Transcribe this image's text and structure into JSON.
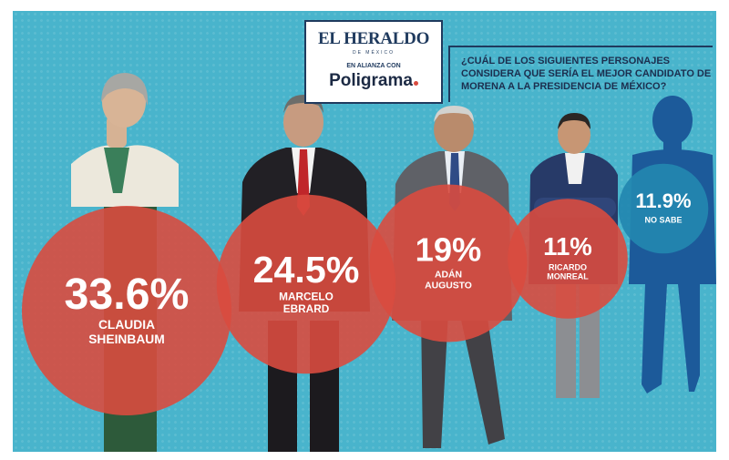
{
  "header": {
    "brand": "EL HERALDO",
    "brand_sub": "DE MÉXICO",
    "alliance": "EN ALIANZA CON",
    "partner": "Poligrama"
  },
  "question": "¿CUÁL DE LOS SIGUIENTES PERSONAJES CONSIDERA QUE SERÍA EL MEJOR CANDIDATO DE MORENA A LA PRESIDENCIA DE MÉXICO?",
  "colors": {
    "background": "#49b4cc",
    "candidate_circle": "#d94b3f",
    "unknown_circle": "#2387b0",
    "silhouette": "#1c5a9a"
  },
  "chart_data": {
    "type": "bubble",
    "categories": [
      "CLAUDIA SHEINBAUM",
      "MARCELO EBRARD",
      "ADÁN AUGUSTO",
      "RICARDO MONREAL",
      "NO SABE"
    ],
    "values": [
      33.6,
      24.5,
      19,
      11,
      11.9
    ],
    "labels": [
      "33.6%",
      "24.5%",
      "19%",
      "11%",
      "11.9%"
    ],
    "name_lines": [
      [
        "CLAUDIA",
        "SHEINBAUM"
      ],
      [
        "MARCELO",
        "EBRARD"
      ],
      [
        "ADÁN",
        "AUGUSTO"
      ],
      [
        "RICARDO",
        "MONREAL"
      ],
      [
        "NO SABE"
      ]
    ],
    "unit": "%"
  }
}
